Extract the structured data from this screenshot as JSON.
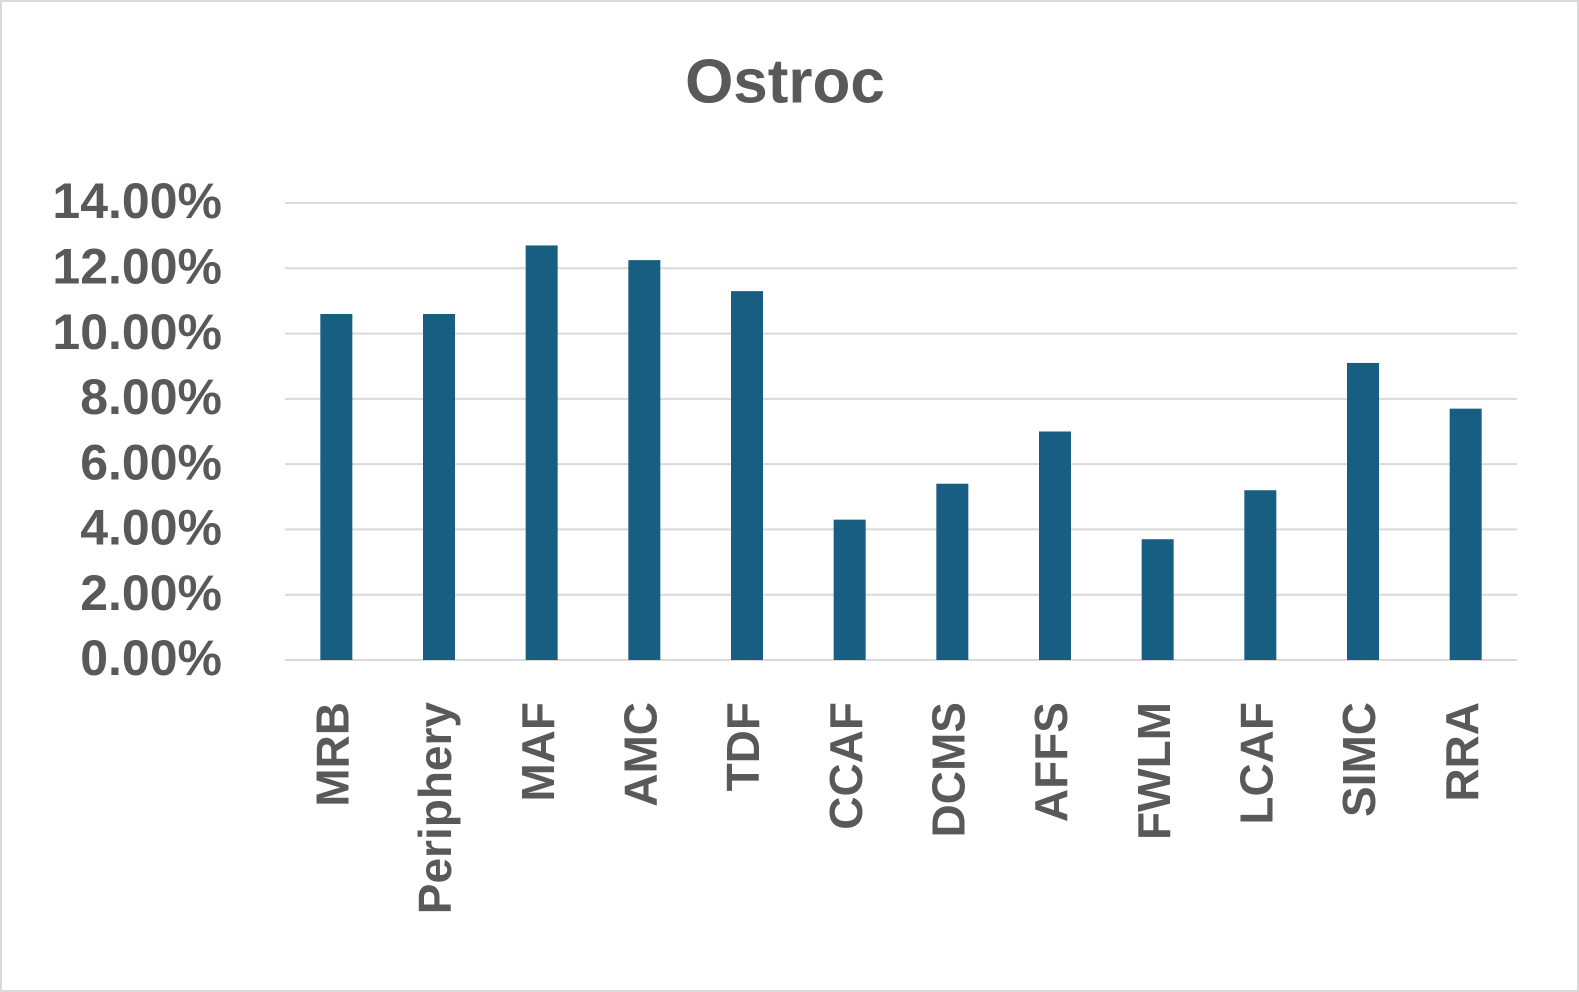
{
  "chart_data": {
    "type": "bar",
    "title": "Ostroc",
    "categories": [
      "MRB",
      "Periphery",
      "MAF",
      "AMC",
      "TDF",
      "CCAF",
      "DCMS",
      "AFFS",
      "FWLM",
      "LCAF",
      "SIMC",
      "RRA"
    ],
    "values": [
      10.6,
      10.6,
      12.7,
      12.25,
      11.3,
      4.3,
      5.4,
      7.0,
      3.7,
      5.2,
      9.1,
      7.7
    ],
    "color": "#175e82",
    "ylim": [
      0,
      14
    ],
    "yticks": [
      {
        "value": 0,
        "label": "0.00%"
      },
      {
        "value": 2,
        "label": "2.00%"
      },
      {
        "value": 4,
        "label": "4.00%"
      },
      {
        "value": 6,
        "label": "6.00%"
      },
      {
        "value": 8,
        "label": "8.00%"
      },
      {
        "value": 10,
        "label": "10.00%"
      },
      {
        "value": 12,
        "label": "12.00%"
      },
      {
        "value": 14,
        "label": "14.00%"
      }
    ],
    "grid": true
  }
}
